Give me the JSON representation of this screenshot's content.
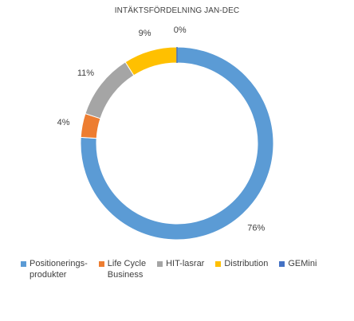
{
  "chart_data": {
    "type": "pie",
    "title": "INTÄKTSFÖRDELNING JAN-DEC",
    "hole": true,
    "slices": [
      {
        "name": "Positionerings- produkter",
        "legend_lines": [
          "Positionerings-",
          "produkter"
        ],
        "value": 76,
        "label": "76%",
        "color": "#5B9BD5"
      },
      {
        "name": "Life Cycle Business",
        "legend_lines": [
          "Life Cycle",
          "Business"
        ],
        "value": 4,
        "label": "4%",
        "color": "#ED7D31"
      },
      {
        "name": "HIT-lasrar",
        "legend_lines": [
          "HIT-lasrar"
        ],
        "value": 11,
        "label": "11%",
        "color": "#A5A5A5"
      },
      {
        "name": "Distribution",
        "legend_lines": [
          "Distribution"
        ],
        "value": 9,
        "label": "9%",
        "color": "#FFC000"
      },
      {
        "name": "GEMini",
        "legend_lines": [
          "GEMini"
        ],
        "value": 0,
        "label": "0%",
        "color": "#4472C4"
      }
    ],
    "legend_position": "bottom"
  }
}
